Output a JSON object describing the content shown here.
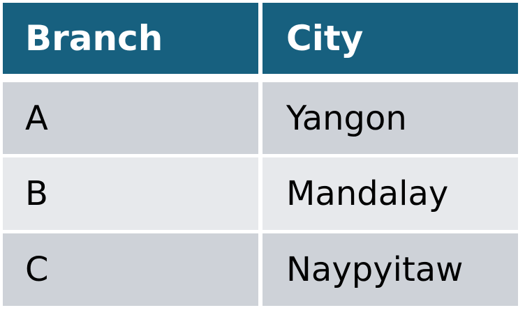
{
  "table": {
    "columns": [
      "Branch",
      "City"
    ],
    "rows": [
      {
        "branch": "A",
        "city": "Yangon"
      },
      {
        "branch": "B",
        "city": "Mandalay"
      },
      {
        "branch": "C",
        "city": "Naypyitaw"
      }
    ]
  },
  "colors": {
    "header_background": "#17607f",
    "header_text": "#ffffff",
    "row_dark": "#ced2d8",
    "row_light": "#e7e9ec"
  }
}
